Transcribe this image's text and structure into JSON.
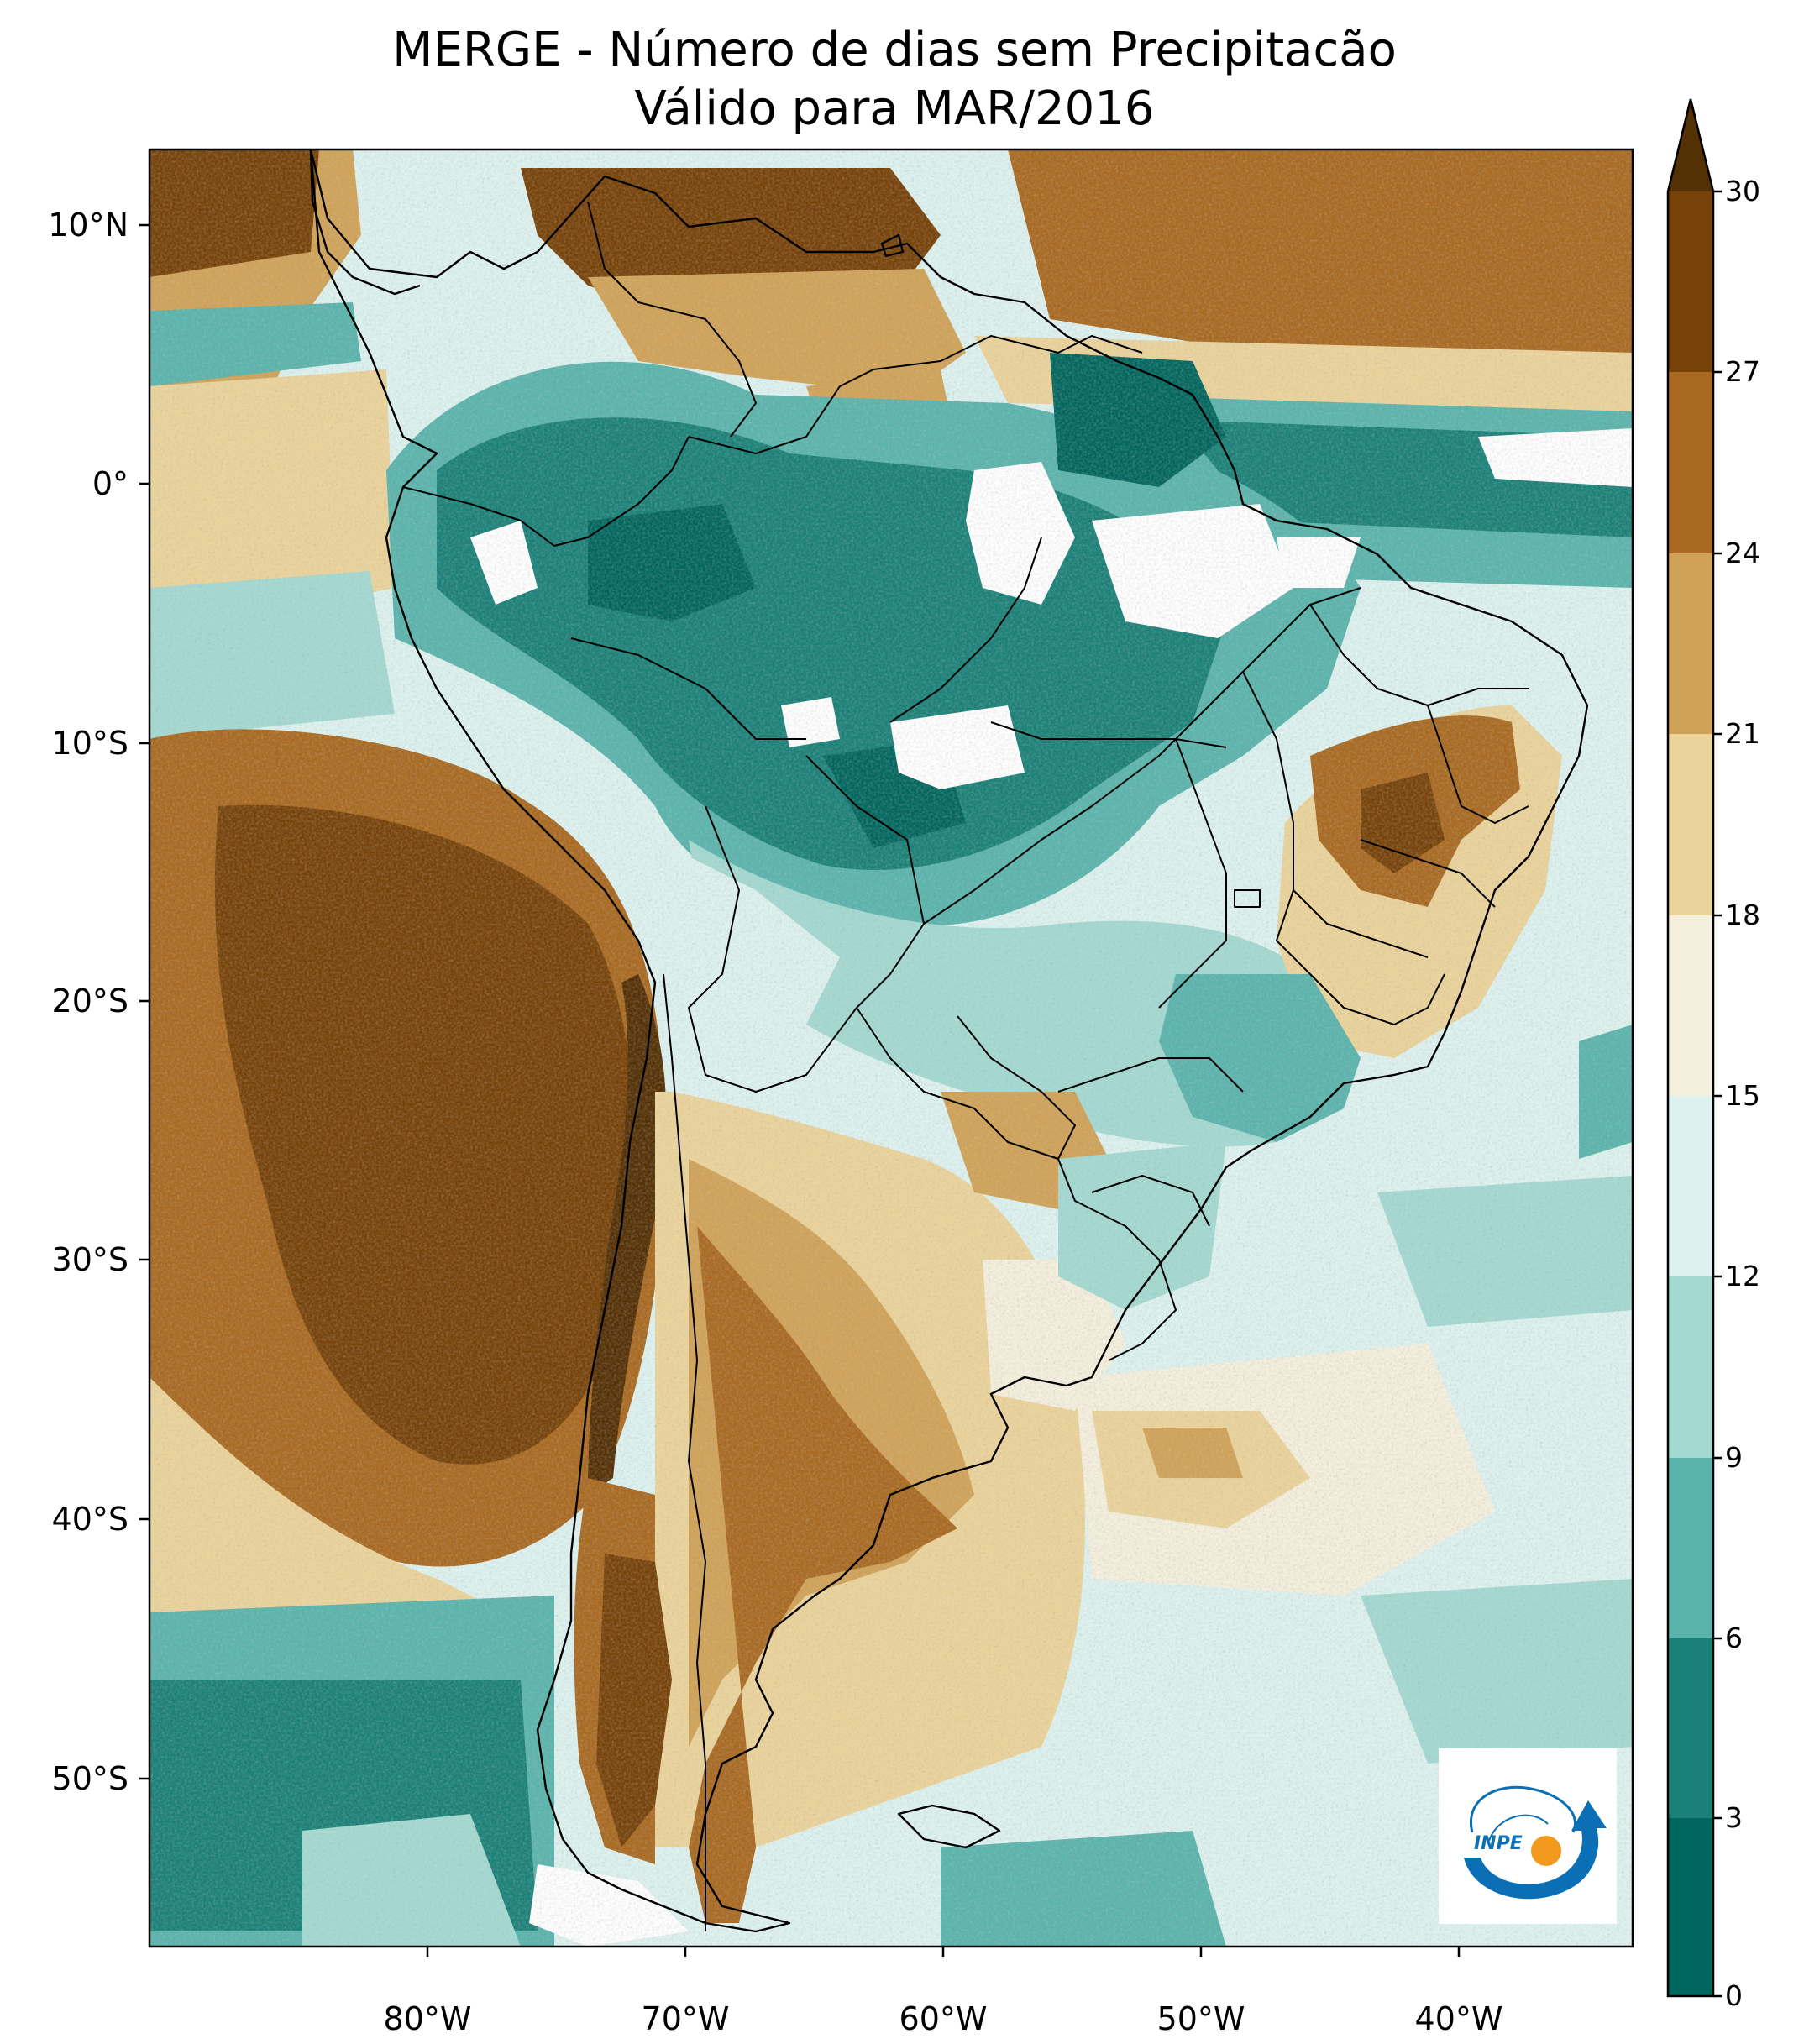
{
  "title": {
    "line1": "MERGE - Número de dias sem Precipitacão",
    "line2": "Válido para MAR/2016"
  },
  "axes": {
    "lat_labels": [
      "10°N",
      "0°",
      "10°S",
      "20°S",
      "30°S",
      "40°S",
      "50°S"
    ],
    "lon_labels": [
      "80°W",
      "70°W",
      "60°W",
      "50°W",
      "40°W"
    ]
  },
  "colorbar": {
    "ticks": [
      "0",
      "3",
      "6",
      "9",
      "12",
      "15",
      "18",
      "21",
      "24",
      "27",
      "30"
    ],
    "bins": [
      {
        "range": "0-3",
        "color": "#01665e"
      },
      {
        "range": "3-6",
        "color": "#1a8178"
      },
      {
        "range": "6-9",
        "color": "#5ab4ac"
      },
      {
        "range": "9-12",
        "color": "#a3d9d1"
      },
      {
        "range": "12-15",
        "color": "#ddf2ef"
      },
      {
        "range": "15-18",
        "color": "#f5efdd"
      },
      {
        "range": "18-21",
        "color": "#ebd39a"
      },
      {
        "range": "21-24",
        "color": "#d0a257"
      },
      {
        "range": "24-27",
        "color": "#a96920"
      },
      {
        "range": "27-30",
        "color": "#774208"
      },
      {
        "range": ">30",
        "color": "#543005"
      }
    ]
  },
  "logo": {
    "text": "INPE"
  }
}
